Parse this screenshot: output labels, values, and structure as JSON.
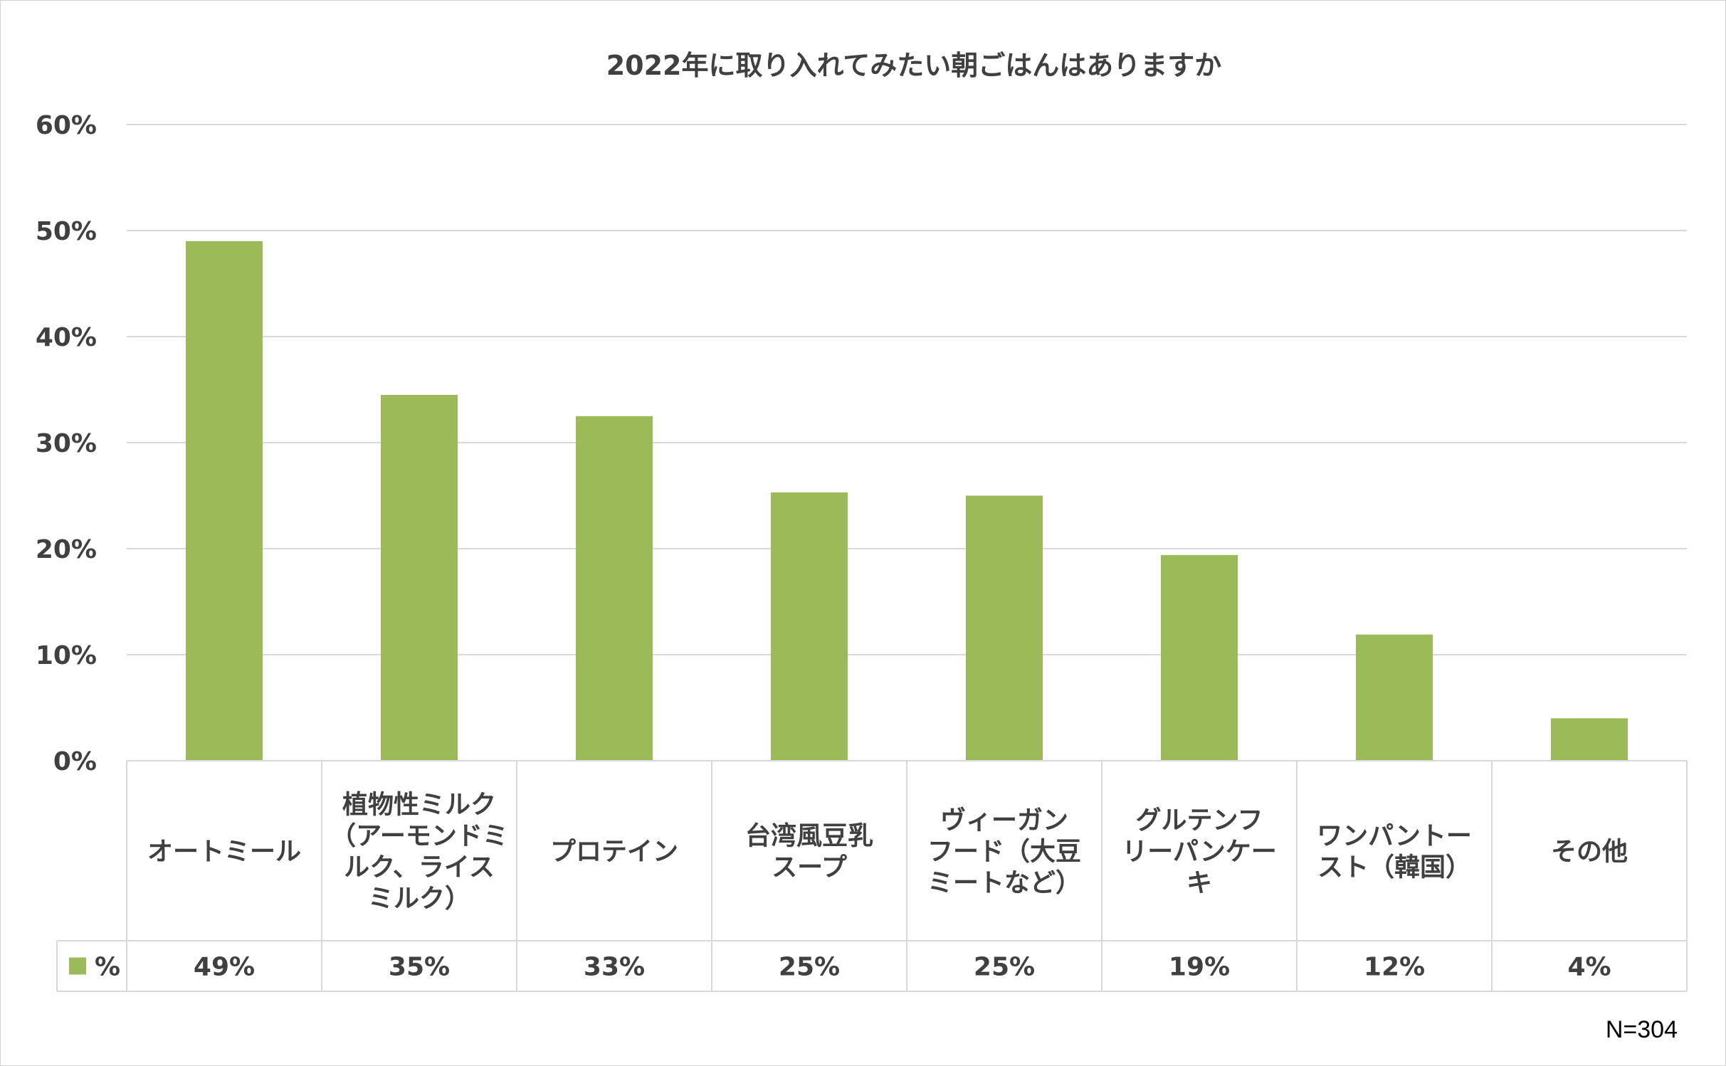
{
  "chart_data": {
    "type": "bar",
    "title": "2022年に取り入れてみたい朝ごはんはありますか",
    "categories": [
      "オートミール",
      "植物性ミルク（アーモンドミルク、ライスミルク）",
      "プロテイン",
      "台湾風豆乳スープ",
      "ヴィーガンフード（大豆ミートなど）",
      "グルテンフリーパンケーキ",
      "ワンパントースト（韓国）",
      "その他"
    ],
    "category_lines": [
      [
        "オートミール"
      ],
      [
        "植物性ミルク",
        "（アーモンドミ",
        "ルク、ライス",
        "ミルク）"
      ],
      [
        "プロテイン"
      ],
      [
        "台湾風豆乳",
        "スープ"
      ],
      [
        "ヴィーガン",
        "フード（大豆",
        "ミートなど）"
      ],
      [
        "グルテンフ",
        "リーパンケー",
        "キ"
      ],
      [
        "ワンパントー",
        "スト（韓国）"
      ],
      [
        "その他"
      ]
    ],
    "series": [
      {
        "name": "%",
        "values": [
          0.49,
          0.345,
          0.325,
          0.253,
          0.25,
          0.194,
          0.119,
          0.04
        ],
        "labels": [
          "49%",
          "35%",
          "33%",
          "25%",
          "25%",
          "19%",
          "12%",
          "4%"
        ]
      }
    ],
    "ylim": [
      0,
      0.6
    ],
    "yticks": [
      "0%",
      "10%",
      "20%",
      "30%",
      "40%",
      "50%",
      "60%"
    ],
    "xlabel": "",
    "ylabel": "",
    "grid": true,
    "legend": "data-table",
    "colors": {
      "bar": "#9bbb59",
      "grid": "#d9d9d9",
      "text": "#404040"
    }
  },
  "note": "N=304"
}
